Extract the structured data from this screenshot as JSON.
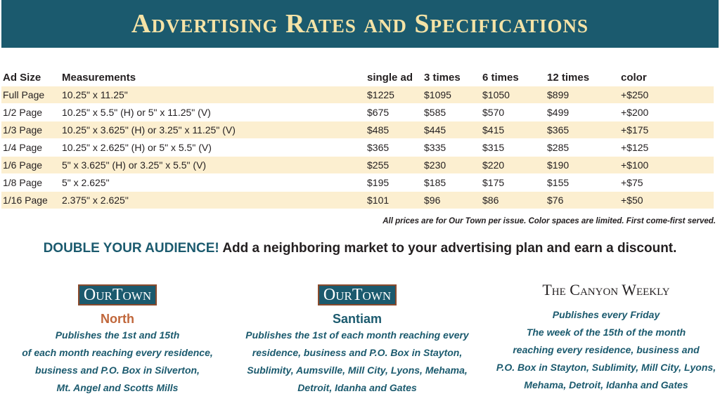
{
  "header": {
    "title": "Advertising Rates and Specifications"
  },
  "table": {
    "columns": [
      "Ad Size",
      "Measurements",
      "single ad",
      "3 times",
      "6 times",
      "12 times",
      "color"
    ],
    "rows": [
      [
        "Full Page",
        "10.25\" x 11.25\"",
        "$1225",
        "$1095",
        "$1050",
        "$899",
        "+$250"
      ],
      [
        "1/2 Page",
        "10.25\" x 5.5\" (H) or 5\" x 11.25\" (V)",
        "$675",
        "$585",
        "$570",
        "$499",
        "+$200"
      ],
      [
        "1/3 Page",
        "10.25\" x 3.625\" (H) or 3.25\" x 11.25\" (V)",
        "$485",
        "$445",
        "$415",
        "$365",
        "+$175"
      ],
      [
        "1/4 Page",
        "10.25\" x 2.625\" (H) or 5\" x 5.5\" (V)",
        "$365",
        "$335",
        "$315",
        "$285",
        "+$125"
      ],
      [
        "1/6 Page",
        "5\" x 3.625\" (H) or 3.25\" x 5.5\" (V)",
        "$255",
        "$230",
        "$220",
        "$190",
        "+$100"
      ],
      [
        "1/8 Page",
        "5\" x 2.625\"",
        "$195",
        "$185",
        "$175",
        "$155",
        "+$75"
      ],
      [
        "1/16 Page",
        "2.375\" x 2.625\"",
        "$101",
        "$96",
        "$86",
        "$76",
        "+$50"
      ]
    ]
  },
  "footnote": "All prices are  for Our Town per issue. Color spaces are limited. First come-first served.",
  "promo": {
    "lead": "DOUBLE YOUR AUDIENCE!",
    "text": "Add a neighboring market to your advertising plan and earn a discount."
  },
  "papers": [
    {
      "logo": "OurTown",
      "edition": "North",
      "lines": [
        "Publishes the 1st and 15th",
        "of each month reaching every residence,",
        "business and P.O. Box in Silverton,",
        "Mt. Angel and Scotts Mills"
      ]
    },
    {
      "logo": "OurTown",
      "edition": "Santiam",
      "lines": [
        "Publishes the 1st of each month reaching every",
        "residence, business and P.O. Box in Stayton,",
        "Sublimity, Aumsville, Mill City, Lyons, Mehama,",
        "Detroit, Idanha and Gates"
      ]
    },
    {
      "logo": "The Canyon Weekly",
      "lines": [
        "Publishes every Friday",
        "The week of the 15th of the month",
        "reaching  every residence, business and",
        "P.O. Box in Stayton, Sublimity, Mill City,  Lyons,",
        "Mehama, Detroit, Idanha and Gates"
      ]
    }
  ]
}
